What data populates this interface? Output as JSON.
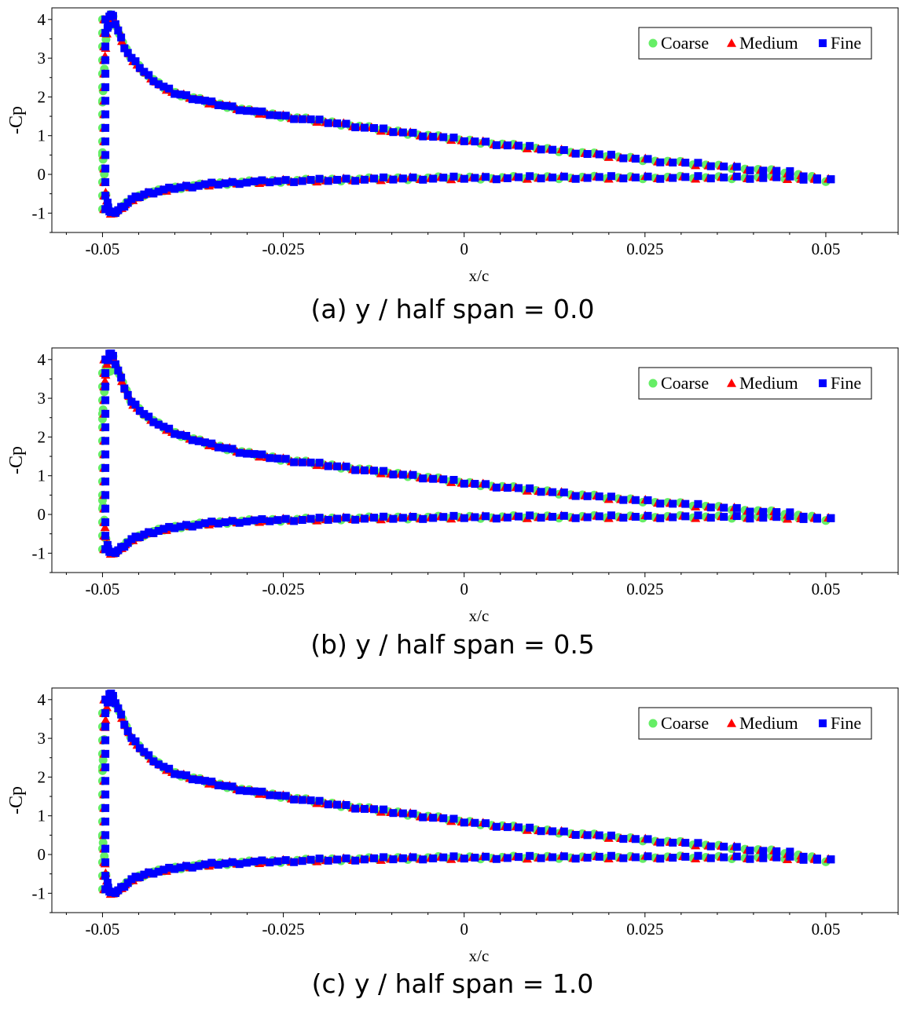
{
  "chart_data": [
    {
      "type": "scatter",
      "caption": "(a) y / half span = 0.0",
      "xlabel": "x/c",
      "ylabel": "-Cp",
      "xlim": [
        -0.057,
        0.06
      ],
      "ylim": [
        -1.5,
        4.3
      ],
      "xticks": [
        -0.05,
        -0.025,
        0,
        0.025,
        0.05
      ],
      "xtick_labels": [
        "-0.05",
        "-0.025",
        "0",
        "0.025",
        "0.05"
      ],
      "yticks": [
        -1,
        0,
        1,
        2,
        3,
        4
      ],
      "ytick_labels": [
        "-1",
        "0",
        "1",
        "2",
        "3",
        "4"
      ],
      "legend": [
        "Coarse",
        "Medium",
        "Fine"
      ],
      "legend_position": "top-right",
      "series": [
        {
          "name": "Coarse",
          "marker": "circle",
          "color": "#66ee66",
          "offset": 0.0,
          "peak": 4.15
        },
        {
          "name": "Medium",
          "marker": "triangle",
          "color": "#ff0000",
          "offset": 0.0,
          "peak": 4.05
        },
        {
          "name": "Fine",
          "marker": "square",
          "color": "#0000ff",
          "offset": 0.0,
          "peak": 4.25
        }
      ],
      "curve_profile": {
        "x": [
          -0.05,
          -0.0495,
          -0.049,
          -0.0485,
          -0.048,
          -0.047,
          -0.046,
          -0.044,
          -0.042,
          -0.04,
          -0.035,
          -0.03,
          -0.025,
          -0.02,
          -0.015,
          -0.01,
          -0.005,
          0,
          0.005,
          0.01,
          0.015,
          0.02,
          0.025,
          0.03,
          0.035,
          0.04,
          0.045,
          0.05
        ],
        "upper": [
          1.9,
          3.5,
          4.15,
          4.05,
          3.8,
          3.3,
          3.0,
          2.6,
          2.3,
          2.1,
          1.85,
          1.65,
          1.5,
          1.38,
          1.25,
          1.12,
          1.0,
          0.88,
          0.78,
          0.68,
          0.58,
          0.48,
          0.38,
          0.3,
          0.22,
          0.13,
          0.05,
          -0.15
        ],
        "lower": [
          0.6,
          -0.6,
          -0.98,
          -1.0,
          -0.95,
          -0.8,
          -0.65,
          -0.5,
          -0.42,
          -0.35,
          -0.25,
          -0.2,
          -0.17,
          -0.15,
          -0.13,
          -0.11,
          -0.1,
          -0.09,
          -0.09,
          -0.08,
          -0.08,
          -0.08,
          -0.08,
          -0.08,
          -0.08,
          -0.08,
          -0.09,
          -0.15
        ]
      }
    },
    {
      "type": "scatter",
      "caption": "(b) y / half span = 0.5",
      "xlabel": "x/c",
      "ylabel": "-Cp",
      "xlim": [
        -0.057,
        0.06
      ],
      "ylim": [
        -1.5,
        4.3
      ],
      "xticks": [
        -0.05,
        -0.025,
        0,
        0.025,
        0.05
      ],
      "xtick_labels": [
        "-0.05",
        "-0.025",
        "0",
        "0.025",
        "0.05"
      ],
      "yticks": [
        -1,
        0,
        1,
        2,
        3,
        4
      ],
      "ytick_labels": [
        "-1",
        "0",
        "1",
        "2",
        "3",
        "4"
      ],
      "legend": [
        "Coarse",
        "Medium",
        "Fine"
      ],
      "legend_position": "top-right",
      "series": [
        {
          "name": "Coarse",
          "marker": "circle",
          "color": "#66ee66",
          "offset": 0.0,
          "peak": 3.7
        },
        {
          "name": "Medium",
          "marker": "triangle",
          "color": "#ff0000",
          "offset": 0.0,
          "peak": 4.0
        },
        {
          "name": "Fine",
          "marker": "square",
          "color": "#0000ff",
          "offset": 0.0,
          "peak": 4.2
        }
      ],
      "curve_profile": {
        "x": [
          -0.05,
          -0.0495,
          -0.049,
          -0.0485,
          -0.048,
          -0.047,
          -0.046,
          -0.044,
          -0.042,
          -0.04,
          -0.035,
          -0.03,
          -0.025,
          -0.02,
          -0.015,
          -0.01,
          -0.005,
          0,
          0.005,
          0.01,
          0.015,
          0.02,
          0.025,
          0.03,
          0.035,
          0.04,
          0.045,
          0.05
        ],
        "upper": [
          2.5,
          3.8,
          4.2,
          4.05,
          3.8,
          3.3,
          2.9,
          2.55,
          2.3,
          2.1,
          1.8,
          1.58,
          1.42,
          1.3,
          1.18,
          1.06,
          0.95,
          0.82,
          0.72,
          0.62,
          0.52,
          0.43,
          0.35,
          0.27,
          0.19,
          0.1,
          0.02,
          -0.12
        ],
        "lower": [
          0.4,
          -0.7,
          -0.98,
          -1.0,
          -0.95,
          -0.8,
          -0.65,
          -0.5,
          -0.4,
          -0.33,
          -0.22,
          -0.17,
          -0.14,
          -0.12,
          -0.1,
          -0.09,
          -0.08,
          -0.07,
          -0.07,
          -0.06,
          -0.06,
          -0.06,
          -0.06,
          -0.06,
          -0.06,
          -0.07,
          -0.08,
          -0.12
        ]
      }
    },
    {
      "type": "scatter",
      "caption": "(c) y / half span = 1.0",
      "xlabel": "x/c",
      "ylabel": "-Cp",
      "xlim": [
        -0.057,
        0.06
      ],
      "ylim": [
        -1.5,
        4.3
      ],
      "xticks": [
        -0.05,
        -0.025,
        0,
        0.025,
        0.05
      ],
      "xtick_labels": [
        "-0.05",
        "-0.025",
        "0",
        "0.025",
        "0.05"
      ],
      "yticks": [
        -1,
        0,
        1,
        2,
        3,
        4
      ],
      "ytick_labels": [
        "-1",
        "0",
        "1",
        "2",
        "3",
        "4"
      ],
      "legend": [
        "Coarse",
        "Medium",
        "Fine"
      ],
      "legend_position": "top-right",
      "series": [
        {
          "name": "Coarse",
          "marker": "circle",
          "color": "#66ee66",
          "offset": 0.0,
          "peak": 3.95
        },
        {
          "name": "Medium",
          "marker": "triangle",
          "color": "#ff0000",
          "offset": 0.0,
          "peak": 4.15
        },
        {
          "name": "Fine",
          "marker": "square",
          "color": "#0000ff",
          "offset": 0.0,
          "peak": 4.25
        }
      ],
      "curve_profile": {
        "x": [
          -0.05,
          -0.0495,
          -0.049,
          -0.0485,
          -0.048,
          -0.047,
          -0.046,
          -0.044,
          -0.042,
          -0.04,
          -0.035,
          -0.03,
          -0.025,
          -0.02,
          -0.015,
          -0.01,
          -0.005,
          0,
          0.005,
          0.01,
          0.015,
          0.02,
          0.025,
          0.03,
          0.035,
          0.04,
          0.045,
          0.05
        ],
        "upper": [
          2.2,
          3.7,
          4.2,
          4.05,
          3.85,
          3.4,
          3.0,
          2.6,
          2.3,
          2.1,
          1.85,
          1.65,
          1.5,
          1.35,
          1.22,
          1.1,
          0.98,
          0.85,
          0.74,
          0.64,
          0.55,
          0.46,
          0.38,
          0.3,
          0.22,
          0.13,
          0.04,
          -0.15
        ],
        "lower": [
          0.5,
          -0.6,
          -0.98,
          -1.0,
          -0.95,
          -0.8,
          -0.65,
          -0.5,
          -0.42,
          -0.35,
          -0.25,
          -0.2,
          -0.17,
          -0.14,
          -0.12,
          -0.1,
          -0.09,
          -0.08,
          -0.08,
          -0.07,
          -0.07,
          -0.07,
          -0.07,
          -0.07,
          -0.07,
          -0.08,
          -0.09,
          -0.15
        ]
      }
    }
  ]
}
